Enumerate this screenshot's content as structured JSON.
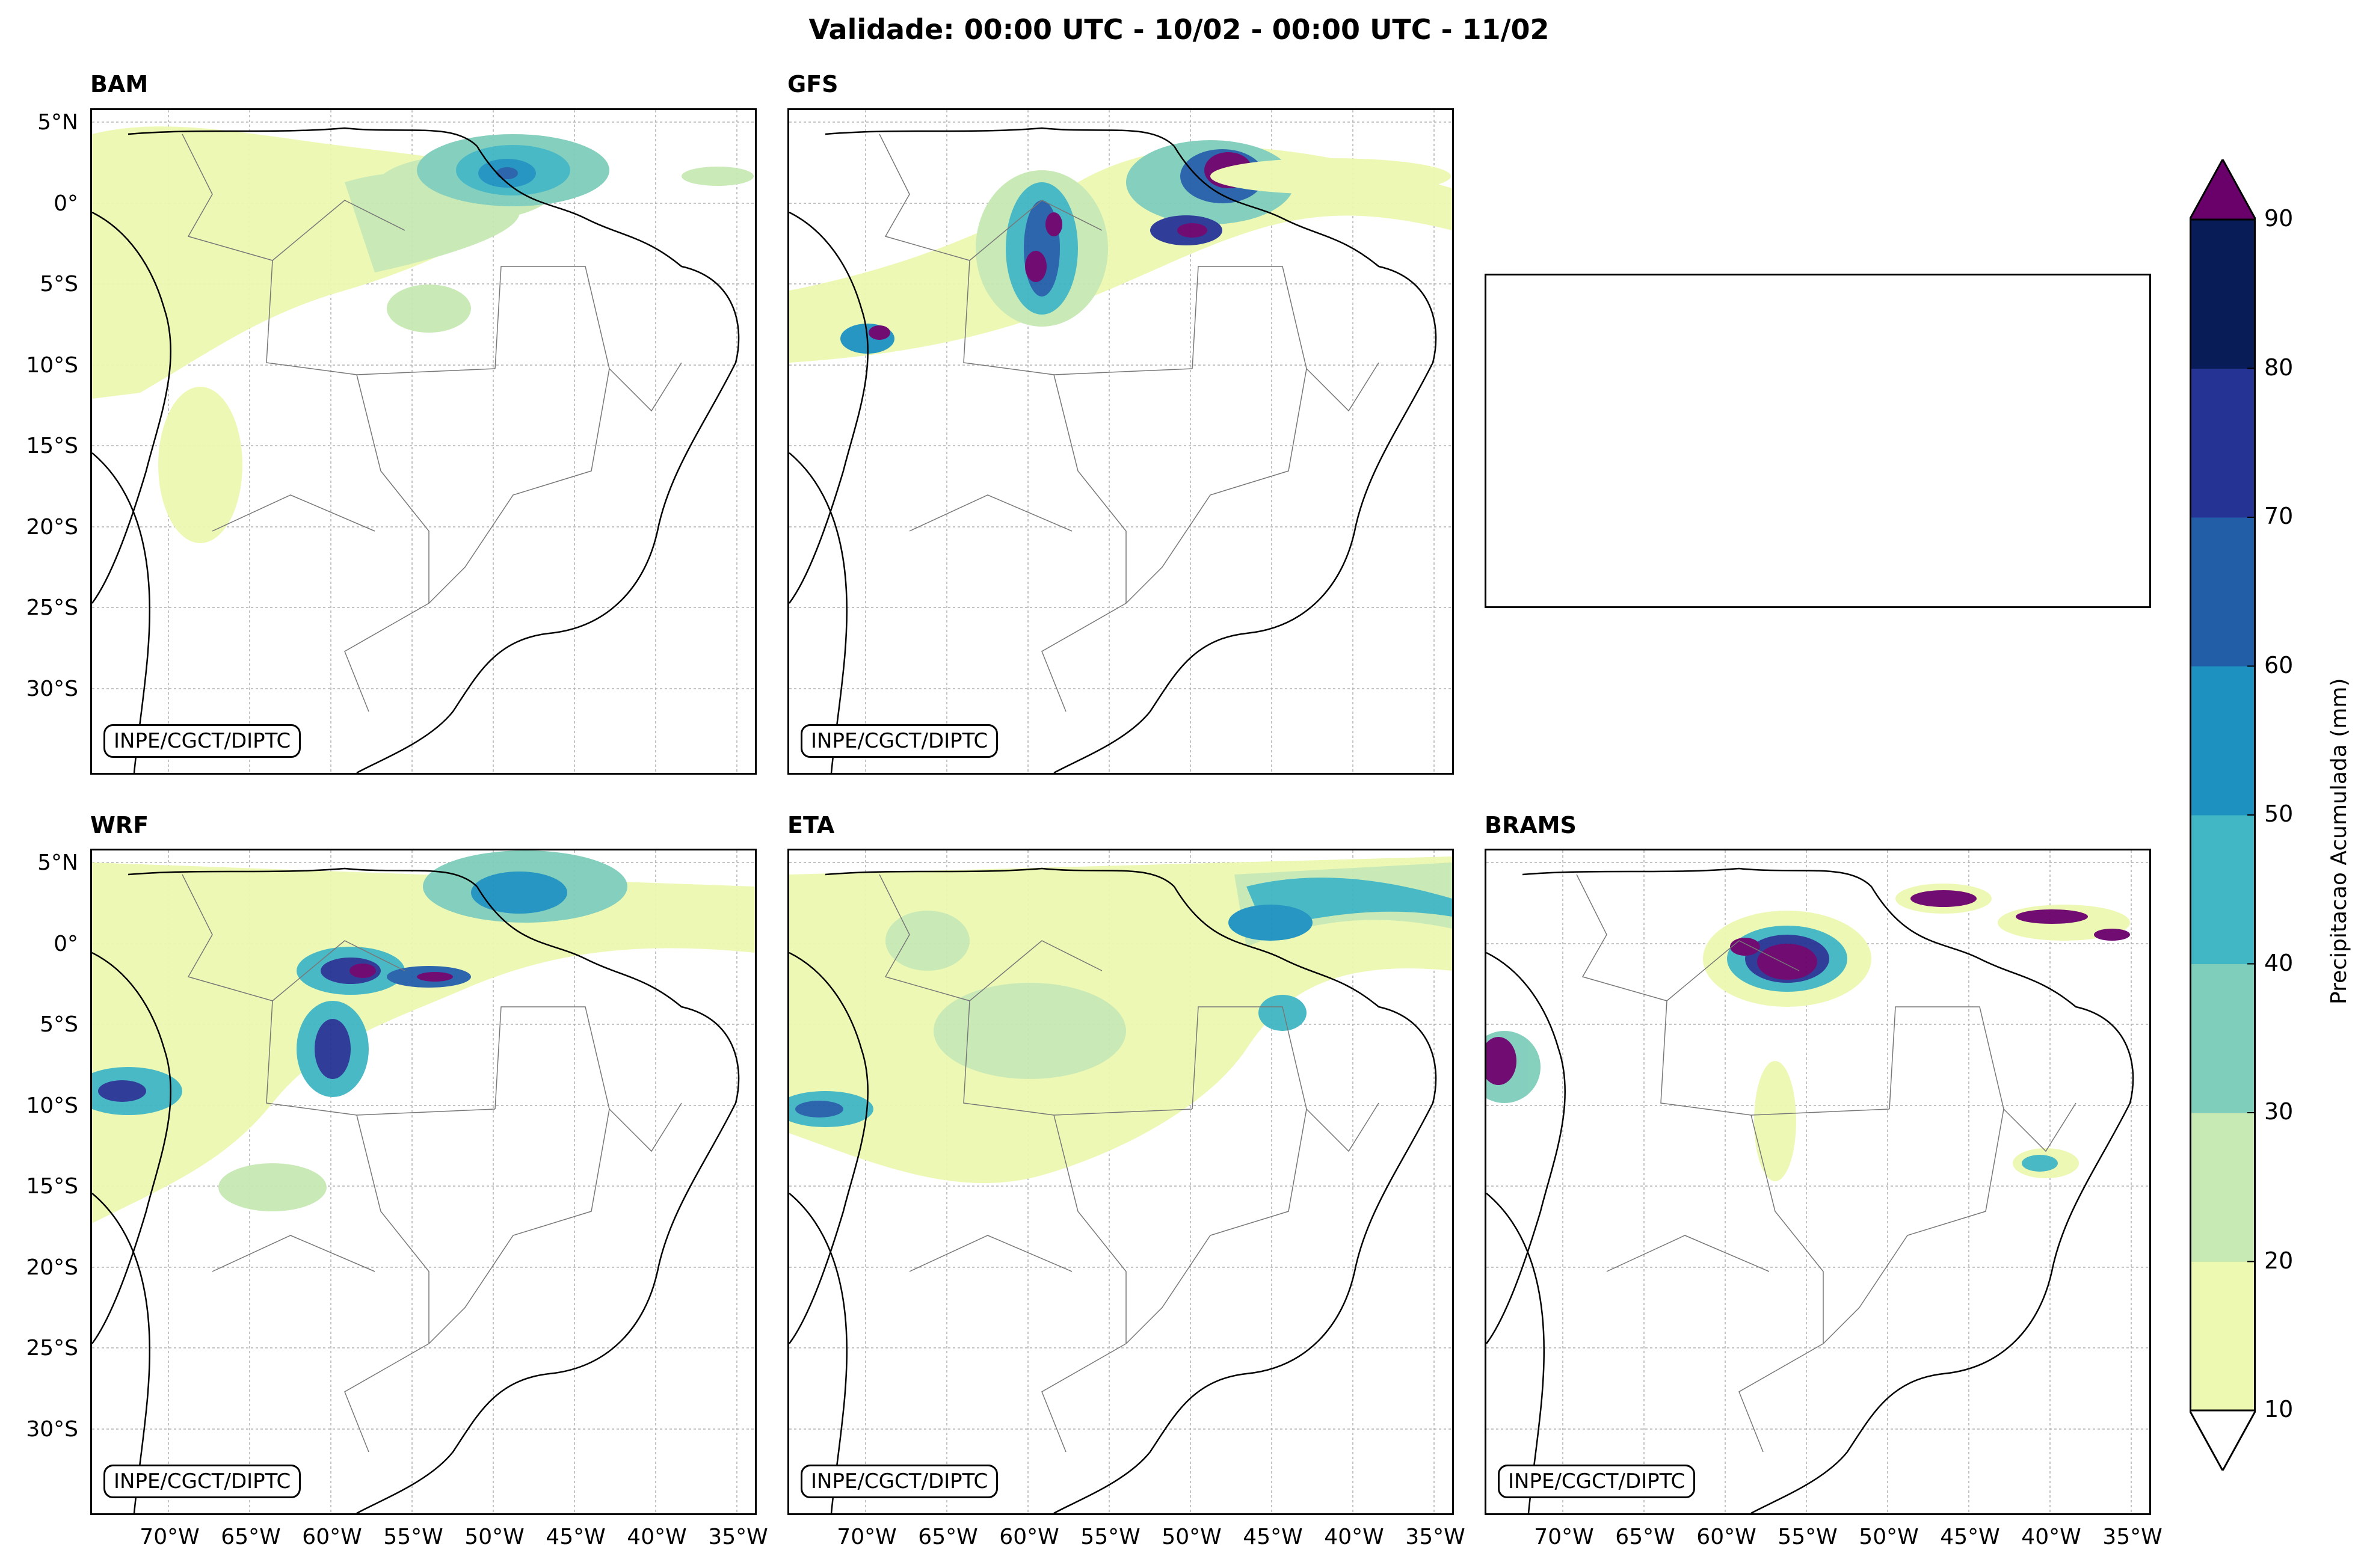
{
  "title": "Validade: 00:00 UTC - 10/02 - 00:00 UTC - 11/02",
  "credit": "INPE/CGCT/DIPTC",
  "lat_labels": [
    "5°N",
    "0°",
    "5°S",
    "10°S",
    "15°S",
    "20°S",
    "25°S",
    "30°S"
  ],
  "lon_labels": [
    "70°W",
    "65°W",
    "60°W",
    "55°W",
    "50°W",
    "45°W",
    "40°W",
    "35°W"
  ],
  "panels": [
    {
      "id": "bam",
      "title": "BAM"
    },
    {
      "id": "gfs",
      "title": "GFS"
    },
    {
      "id": "wrf",
      "title": "WRF"
    },
    {
      "id": "eta",
      "title": "ETA"
    },
    {
      "id": "brams",
      "title": "BRAMS"
    }
  ],
  "colorbar": {
    "label": "Precipitacao Acumulada (mm)",
    "ticks": [
      "10",
      "20",
      "30",
      "40",
      "50",
      "60",
      "70",
      "80",
      "90"
    ],
    "colors": [
      "#edf8b1",
      "#c7e9b4",
      "#7fcdbb",
      "#41b6c4",
      "#1d91c0",
      "#225ea8",
      "#253494",
      "#081d58"
    ],
    "over_color": "#6a016b",
    "under_color": "#ffffff"
  }
}
